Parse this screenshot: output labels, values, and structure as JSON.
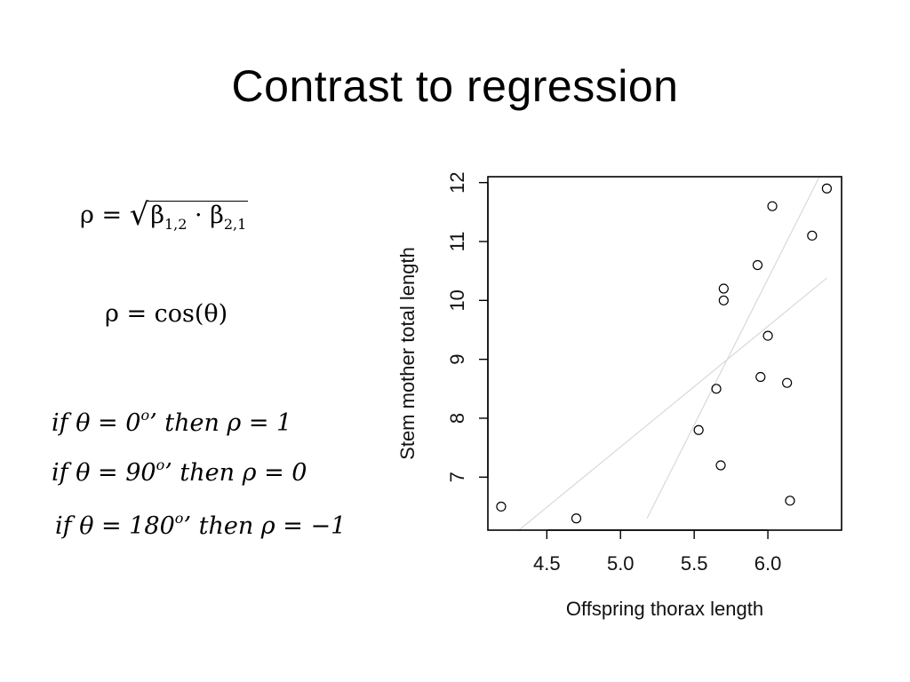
{
  "slide": {
    "title": "Contrast to regression"
  },
  "formulas": {
    "f1": {
      "rho": "ρ",
      "eq": "=",
      "sqrt": "√",
      "b1": "β",
      "b1sub": "1,2",
      "dot": "·",
      "b2": "β",
      "b2sub": "2,1"
    },
    "f2": {
      "text": "ρ = cos(θ)"
    },
    "f3": {
      "pre": "if θ = 0",
      "sup": "o",
      "post": "’ then ρ = 1"
    },
    "f4": {
      "pre": "if θ = 90",
      "sup": "o",
      "post": "’ then ρ = 0"
    },
    "f5": {
      "pre": "if θ = 180",
      "sup": "o",
      "post": "’ then ρ = −1"
    }
  },
  "chart_data": {
    "type": "scatter",
    "xlabel": "Offspring thorax length",
    "ylabel": "Stem mother total length",
    "xlim": [
      4.1,
      6.5
    ],
    "ylim": [
      6.1,
      12.1
    ],
    "xticks": [
      "4.5",
      "5.0",
      "5.5",
      "6.0"
    ],
    "yticks": [
      "7",
      "8",
      "9",
      "10",
      "11",
      "12"
    ],
    "grid": false,
    "points": [
      {
        "x": 4.19,
        "y": 6.5
      },
      {
        "x": 4.7,
        "y": 6.3
      },
      {
        "x": 5.53,
        "y": 7.8
      },
      {
        "x": 5.65,
        "y": 8.5
      },
      {
        "x": 5.68,
        "y": 7.2
      },
      {
        "x": 5.7,
        "y": 10.2
      },
      {
        "x": 5.7,
        "y": 10.0
      },
      {
        "x": 5.93,
        "y": 10.6
      },
      {
        "x": 5.95,
        "y": 8.7
      },
      {
        "x": 6.0,
        "y": 9.4
      },
      {
        "x": 6.03,
        "y": 11.6
      },
      {
        "x": 6.13,
        "y": 8.6
      },
      {
        "x": 6.15,
        "y": 6.6
      },
      {
        "x": 6.3,
        "y": 11.1
      },
      {
        "x": 6.4,
        "y": 11.9
      }
    ],
    "lines": [
      {
        "name": "regression of y on x",
        "x1": 4.31,
        "y1": 6.1,
        "x2": 6.4,
        "y2": 10.38,
        "color": "#d9d9d9"
      },
      {
        "name": "regression of x on y",
        "x1": 5.18,
        "y1": 6.3,
        "x2": 6.35,
        "y2": 12.1,
        "color": "#d9d9d9"
      }
    ],
    "colors": {
      "axis": "#000000",
      "point": "#000000"
    }
  }
}
